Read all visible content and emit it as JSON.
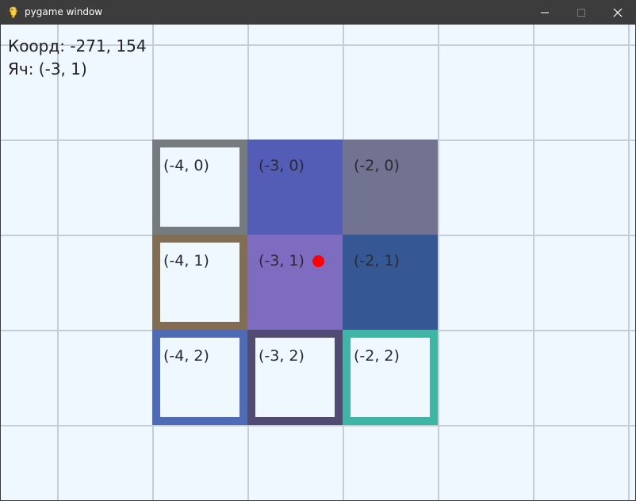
{
  "window": {
    "title": "pygame window",
    "controls": {
      "minimize_icon": "minimize-icon",
      "maximize_icon": "maximize-icon",
      "close_icon": "close-icon"
    },
    "titlebar_color": "#3c3c3c",
    "app_icon": "pygame-snake-icon"
  },
  "hud": {
    "coords_text": "Коорд: -271, 154",
    "cell_text": "Яч: (-3, 1)"
  },
  "grid": {
    "background_color": "#f0f8ff",
    "line_color": "#c6cdd4",
    "cells": [
      {
        "label": "(-4, 0)",
        "style": "outlined",
        "color": "#767b80"
      },
      {
        "label": "(-3, 0)",
        "style": "filled",
        "color": "#545db5"
      },
      {
        "label": "(-2, 0)",
        "style": "filled",
        "color": "#717391"
      },
      {
        "label": "(-4, 1)",
        "style": "outlined",
        "color": "#816d54"
      },
      {
        "label": "(-3, 1)",
        "style": "filled",
        "color": "#7d6cbf"
      },
      {
        "label": "(-2, 1)",
        "style": "filled",
        "color": "#355894"
      },
      {
        "label": "(-4, 2)",
        "style": "outlined",
        "color": "#4f6bb5"
      },
      {
        "label": "(-3, 2)",
        "style": "outlined",
        "color": "#514a73"
      },
      {
        "label": "(-2, 2)",
        "style": "outlined",
        "color": "#40b5a6"
      }
    ]
  },
  "cursor": {
    "color": "#ff0000",
    "hover_cell": "(-3, 1)"
  }
}
